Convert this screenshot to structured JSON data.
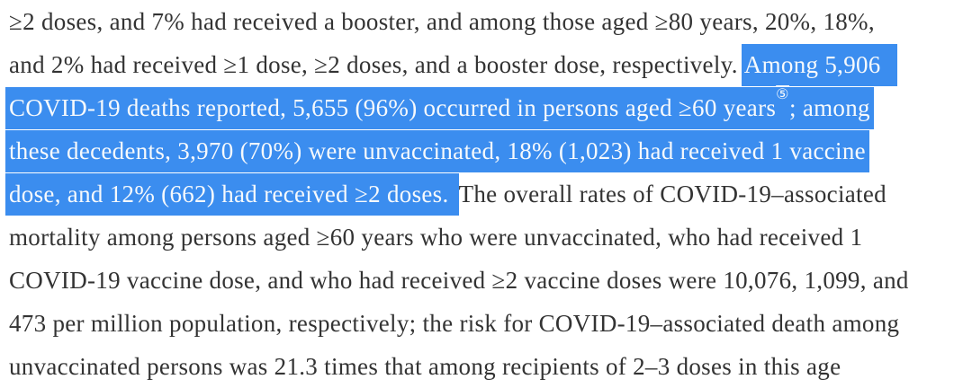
{
  "colors": {
    "background": "#ffffff",
    "text": "#333333",
    "highlight": "#3b8def",
    "highlight_text": "#f6f9fc"
  },
  "citation": {
    "number": "5",
    "glyph": "⑤"
  },
  "document": {
    "lines": [
      {
        "segments": [
          {
            "text": "≥2 doses, and 7% had received a booster, and among those aged ≥80 years, 20%, 18%,",
            "highlight": false
          }
        ]
      },
      {
        "segments": [
          {
            "text": "and 2% had received ≥1 dose, ≥2 doses, and a booster dose, respectively. ",
            "highlight": false
          },
          {
            "text": "Among 5,906",
            "highlight": true
          }
        ]
      },
      {
        "segments": [
          {
            "text": "COVID-19 deaths reported, 5,655 (96%) occurred in persons aged ≥60 years",
            "highlight": true
          },
          {
            "text": "⑤",
            "highlight": true,
            "superscript": true
          },
          {
            "text": "; among",
            "highlight": true
          }
        ]
      },
      {
        "segments": [
          {
            "text": "these decedents, 3,970 (70%) were unvaccinated, 18% (1,023) had received 1 vaccine",
            "highlight": true
          }
        ]
      },
      {
        "segments": [
          {
            "text": "dose, and 12% (662) had received ≥2 doses. ",
            "highlight": true
          },
          {
            "text": "The overall rates of COVID-19–associated",
            "highlight": false
          }
        ]
      },
      {
        "segments": [
          {
            "text": "mortality among persons aged ≥60 years who were unvaccinated, who had received 1",
            "highlight": false
          }
        ]
      },
      {
        "segments": [
          {
            "text": "COVID-19 vaccine dose, and who had received ≥2 vaccine doses were 10,076, 1,099, and",
            "highlight": false
          }
        ]
      },
      {
        "segments": [
          {
            "text": "473 per million population, respectively; the risk for COVID-19–associated death among",
            "highlight": false
          }
        ]
      },
      {
        "segments": [
          {
            "text": "unvaccinated persons was 21.3 times that among recipients of 2–3 doses in this age",
            "highlight": false
          }
        ]
      }
    ]
  }
}
